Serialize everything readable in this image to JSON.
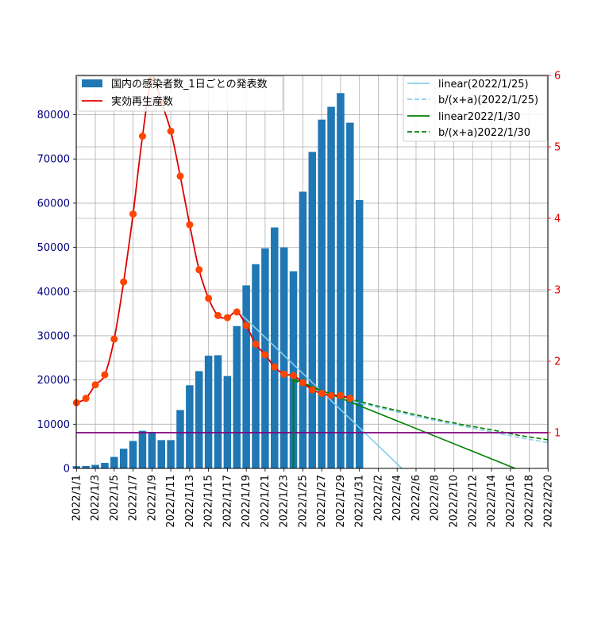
{
  "chart_data": {
    "type": "bar+line",
    "x_dates": [
      "2022/1/1",
      "2022/1/2",
      "2022/1/3",
      "2022/1/4",
      "2022/1/5",
      "2022/1/6",
      "2022/1/7",
      "2022/1/8",
      "2022/1/9",
      "2022/1/10",
      "2022/1/11",
      "2022/1/12",
      "2022/1/13",
      "2022/1/14",
      "2022/1/15",
      "2022/1/16",
      "2022/1/17",
      "2022/1/18",
      "2022/1/19",
      "2022/1/20",
      "2022/1/21",
      "2022/1/22",
      "2022/1/23",
      "2022/1/24",
      "2022/1/25",
      "2022/1/26",
      "2022/1/27",
      "2022/1/28",
      "2022/1/29",
      "2022/1/30",
      "2022/1/31",
      "2022/2/1",
      "2022/2/2",
      "2022/2/3",
      "2022/2/4",
      "2022/2/5",
      "2022/2/6",
      "2022/2/7",
      "2022/2/8",
      "2022/2/9",
      "2022/2/10",
      "2022/2/11",
      "2022/2/12",
      "2022/2/13",
      "2022/2/14",
      "2022/2/15",
      "2022/2/16",
      "2022/2/17",
      "2022/2/18",
      "2022/2/19",
      "2022/2/20"
    ],
    "x_tick_labels": [
      "2022/1/1",
      "2022/1/3",
      "2022/1/5",
      "2022/1/7",
      "2022/1/9",
      "2022/1/11",
      "2022/1/13",
      "2022/1/15",
      "2022/1/17",
      "2022/1/19",
      "2022/1/21",
      "2022/1/23",
      "2022/1/25",
      "2022/1/27",
      "2022/1/29",
      "2022/1/31",
      "2022/2/2",
      "2022/2/4",
      "2022/2/6",
      "2022/2/8",
      "2022/2/10",
      "2022/2/12",
      "2022/2/14",
      "2022/2/16",
      "2022/2/18",
      "2022/2/20"
    ],
    "left_axis": {
      "ylim": [
        0,
        88900
      ],
      "ticks": [
        0,
        10000,
        20000,
        30000,
        40000,
        50000,
        60000,
        70000,
        80000
      ],
      "color": "#000080"
    },
    "right_axis": {
      "ylim": [
        0.5,
        6.0
      ],
      "ticks": [
        1,
        2,
        3,
        4,
        5,
        6
      ],
      "color": "#e00000"
    },
    "bars": {
      "name": "国内の感染者数_1日ごとの発表数",
      "color": "#1f77b4",
      "values": [
        500,
        550,
        800,
        1250,
        2600,
        4450,
        6200,
        8500,
        8250,
        6400,
        6400,
        13200,
        18800,
        22000,
        25500,
        25600,
        20900,
        32200,
        41400,
        46200,
        49800,
        54500,
        50000,
        44600,
        62600,
        71600,
        78900,
        81800,
        84900,
        78200,
        60700
      ]
    },
    "rt_line": {
      "name": "実効再生産数",
      "color": "#e00000",
      "marker_color": "#ff4500",
      "values": [
        1.42,
        1.48,
        1.67,
        1.81,
        2.31,
        3.11,
        4.06,
        5.15,
        5.95,
        5.62,
        5.22,
        4.59,
        3.91,
        3.28,
        2.88,
        2.64,
        2.61,
        2.69,
        2.5,
        2.24,
        2.09,
        1.92,
        1.82,
        1.8,
        1.7,
        1.6,
        1.55,
        1.52,
        1.52,
        1.48
      ]
    },
    "reference_line": {
      "value": 1,
      "color": "#800080"
    },
    "vertical_marker": {
      "date": "2022/1/24",
      "color": "#008000"
    },
    "legend_left": [
      {
        "label": "国内の感染者数_1日ごとの発表数",
        "kind": "bar",
        "color": "#1f77b4"
      },
      {
        "label": "実効再生産数",
        "kind": "line",
        "color": "#e00000"
      }
    ],
    "legend_right": [
      {
        "label": "linear(2022/1/25)",
        "kind": "solid",
        "color": "#87ceeb"
      },
      {
        "label": "b/(x+a)(2022/1/25)",
        "kind": "dashed",
        "color": "#87ceeb"
      },
      {
        "label": "linear2022/1/30",
        "kind": "solid",
        "color": "#008000"
      },
      {
        "label": "b/(x+a)2022/1/30",
        "kind": "dashed",
        "color": "#008000"
      }
    ],
    "fits": [
      {
        "name": "linear(2022/1/25)",
        "color": "#87ceeb",
        "dashed": false,
        "points": [
          [
            17.5,
            2.65
          ],
          [
            34.5,
            0.5
          ]
        ]
      },
      {
        "name": "b/(x+a)(2022/1/25)",
        "color": "#87ceeb",
        "dashed": true,
        "points": [
          [
            23,
            1.73
          ],
          [
            26,
            1.57
          ],
          [
            29,
            1.45
          ],
          [
            32,
            1.35
          ],
          [
            35,
            1.26
          ],
          [
            38,
            1.17
          ],
          [
            41,
            1.09
          ],
          [
            44,
            1.01
          ],
          [
            47,
            0.93
          ],
          [
            50,
            0.86
          ]
        ]
      },
      {
        "name": "linear2022/1/30",
        "color": "#008000",
        "dashed": false,
        "points": [
          [
            23,
            1.75
          ],
          [
            46.5,
            0.5
          ]
        ]
      },
      {
        "name": "b/(x+a)2022/1/30",
        "color": "#008000",
        "dashed": true,
        "points": [
          [
            23,
            1.73
          ],
          [
            26,
            1.58
          ],
          [
            29,
            1.47
          ],
          [
            32,
            1.37
          ],
          [
            35,
            1.28
          ],
          [
            38,
            1.19
          ],
          [
            41,
            1.11
          ],
          [
            44,
            1.04
          ],
          [
            47,
            0.96
          ],
          [
            50,
            0.9
          ]
        ]
      }
    ]
  }
}
